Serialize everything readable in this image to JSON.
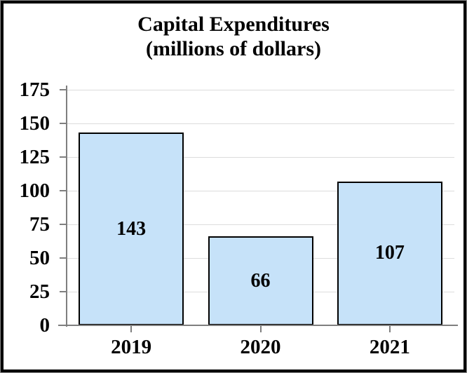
{
  "frame": {
    "background": "#ffffff",
    "border_color": "#000000",
    "outer_edge_color": "#8a8a8a"
  },
  "chart_data": {
    "type": "bar",
    "title_line1": "Capital Expenditures",
    "title_line2": "(millions of dollars)",
    "categories": [
      "2019",
      "2020",
      "2021"
    ],
    "values": [
      143,
      66,
      107
    ],
    "value_labels": [
      "143",
      "66",
      "107"
    ],
    "ylim": [
      0,
      175
    ],
    "ytick_interval": 25,
    "yticks": [
      0,
      25,
      50,
      75,
      100,
      125,
      150,
      175
    ],
    "xlabel": "",
    "ylabel": "",
    "grid": "horizontal",
    "legend": "none",
    "colors": {
      "bar_fill": "#C6E2F9",
      "bar_border": "#000000",
      "axis": "#7F7F7F",
      "gridline": "#DCDCDC",
      "text": "#000000"
    }
  }
}
